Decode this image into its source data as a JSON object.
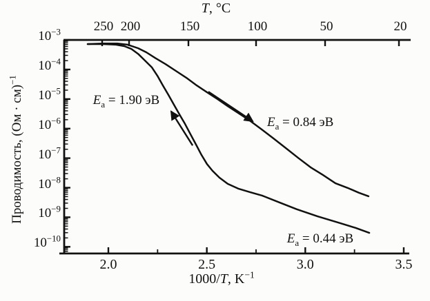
{
  "figure": {
    "top_axis_title": {
      "italic": "T",
      "rest": ", °C"
    },
    "x_axis_label": {
      "prefix": "1000/",
      "italic": "T",
      "rest": ", K",
      "sup": "−1"
    },
    "y_axis_label": {
      "text": "Проводимость, (Ом · см)",
      "sup": "−1"
    }
  },
  "chart_data": {
    "type": "line",
    "title": "Temperature dependence of conductivity (Arrhenius plot with hysteresis)",
    "xlabel": "1000/T, K⁻¹",
    "ylabel": "Проводимость, (Ом · см)⁻¹",
    "top_axis_label": "T, °C",
    "x_ticks": [
      2.0,
      2.5,
      3.0,
      3.5
    ],
    "x_minor_ticks": [
      2.25,
      2.75,
      3.25
    ],
    "xlim": [
      1.78,
      3.53
    ],
    "y_scale": "log",
    "y_tick_exponents": [
      -3,
      -4,
      -5,
      -6,
      -7,
      -8,
      -9,
      -10
    ],
    "ylim_exponents": [
      -3,
      -10.2
    ],
    "top_axis_ticks_celsius": [
      250,
      200,
      150,
      100,
      50,
      20
    ],
    "grid": false,
    "legend": "none",
    "series": [
      {
        "name": "upper-branch",
        "activation_energy_eV": 0.84,
        "points": [
          [
            1.895,
            -3.14
          ],
          [
            1.975,
            -3.12
          ],
          [
            2.046,
            -3.12
          ],
          [
            2.098,
            -3.16
          ],
          [
            2.151,
            -3.28
          ],
          [
            2.193,
            -3.42
          ],
          [
            2.238,
            -3.61
          ],
          [
            2.291,
            -3.82
          ],
          [
            2.343,
            -4.05
          ],
          [
            2.396,
            -4.28
          ],
          [
            2.449,
            -4.54
          ],
          [
            2.501,
            -4.77
          ],
          [
            2.554,
            -5.0
          ],
          [
            2.606,
            -5.24
          ],
          [
            2.659,
            -5.47
          ],
          [
            2.712,
            -5.7
          ],
          [
            2.775,
            -6.01
          ],
          [
            2.838,
            -6.33
          ],
          [
            2.901,
            -6.66
          ],
          [
            2.964,
            -6.99
          ],
          [
            3.027,
            -7.31
          ],
          [
            3.09,
            -7.57
          ],
          [
            3.153,
            -7.85
          ],
          [
            3.216,
            -8.01
          ],
          [
            3.272,
            -8.17
          ],
          [
            3.321,
            -8.29
          ]
        ]
      },
      {
        "name": "lower-branch",
        "activation_energy_eV_steep": 1.9,
        "activation_energy_eV_tail": 0.44,
        "points": [
          [
            1.895,
            -3.14
          ],
          [
            1.975,
            -3.14
          ],
          [
            2.039,
            -3.16
          ],
          [
            2.081,
            -3.21
          ],
          [
            2.116,
            -3.3
          ],
          [
            2.151,
            -3.47
          ],
          [
            2.186,
            -3.7
          ],
          [
            2.221,
            -3.93
          ],
          [
            2.249,
            -4.21
          ],
          [
            2.277,
            -4.54
          ],
          [
            2.305,
            -4.86
          ],
          [
            2.333,
            -5.19
          ],
          [
            2.361,
            -5.52
          ],
          [
            2.389,
            -5.84
          ],
          [
            2.417,
            -6.19
          ],
          [
            2.445,
            -6.54
          ],
          [
            2.473,
            -6.89
          ],
          [
            2.501,
            -7.2
          ],
          [
            2.529,
            -7.43
          ],
          [
            2.564,
            -7.66
          ],
          [
            2.606,
            -7.87
          ],
          [
            2.659,
            -8.03
          ],
          [
            2.719,
            -8.15
          ],
          [
            2.782,
            -8.27
          ],
          [
            2.869,
            -8.5
          ],
          [
            2.957,
            -8.73
          ],
          [
            3.062,
            -8.97
          ],
          [
            3.167,
            -9.18
          ],
          [
            3.255,
            -9.36
          ],
          [
            3.325,
            -9.53
          ]
        ]
      }
    ],
    "annotations": [
      {
        "id": "ea-190",
        "e": "E",
        "sub": "a",
        "text": " = 1.90 эВ",
        "x": 2.091,
        "log_y": -5.05
      },
      {
        "id": "ea-084",
        "e": "E",
        "sub": "a",
        "text": " = 0.84 эВ",
        "x": 2.975,
        "log_y": -5.8
      },
      {
        "id": "ea-044",
        "e": "E",
        "sub": "a",
        "text": " = 0.44 эВ",
        "x": 3.076,
        "log_y": -9.74
      }
    ],
    "arrows": [
      {
        "id": "arrow-up-left",
        "from": [
          2.428,
          -6.57
        ],
        "to": [
          2.319,
          -5.42
        ]
      },
      {
        "id": "arrow-down-right",
        "from": [
          2.508,
          -4.75
        ],
        "to": [
          2.733,
          -5.75
        ]
      }
    ],
    "colors": {
      "ink": "#111111",
      "background": "#fcfcfb"
    }
  }
}
